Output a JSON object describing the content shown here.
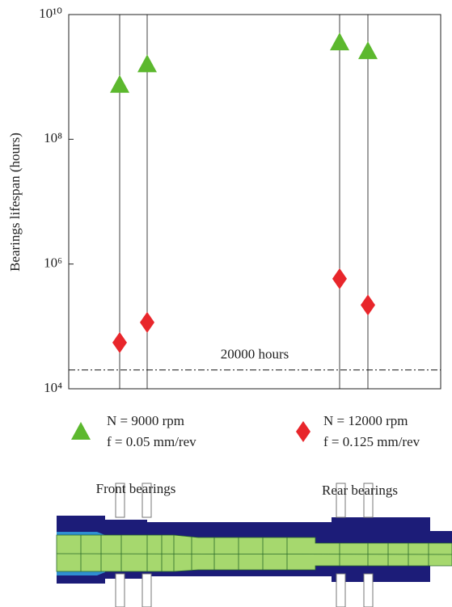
{
  "chart_data": {
    "type": "scatter",
    "y_label": "Bearings lifespan (hours)",
    "categories": [
      null,
      null,
      null,
      null
    ],
    "series": [
      {
        "name": "N = 9000 rpm",
        "params": "f = 0.05 mm/rev",
        "color": "#5cb82e",
        "marker": "triangle",
        "values": [
          750000000,
          1600000000,
          3600000000,
          2600000000
        ]
      },
      {
        "name": "N = 12000 rpm",
        "params": "f = 0.125 mm/rev",
        "color": "#e8262b",
        "marker": "diamond",
        "values": [
          55000,
          116000,
          580000,
          220000
        ]
      }
    ],
    "ylim": [
      10000,
      10000000000
    ],
    "yticks": [
      {
        "value": 10000,
        "label": "10⁴"
      },
      {
        "value": 1000000,
        "label": "10⁶"
      },
      {
        "value": 100000000,
        "label": "10⁸"
      },
      {
        "value": 10000000000,
        "label": "10¹⁰"
      }
    ],
    "log_y": true,
    "annotations": [
      {
        "value": 20000,
        "label": "20000 hours"
      }
    ]
  },
  "diagram": {
    "labels": [
      "Front bearings",
      "Rear bearings"
    ]
  }
}
